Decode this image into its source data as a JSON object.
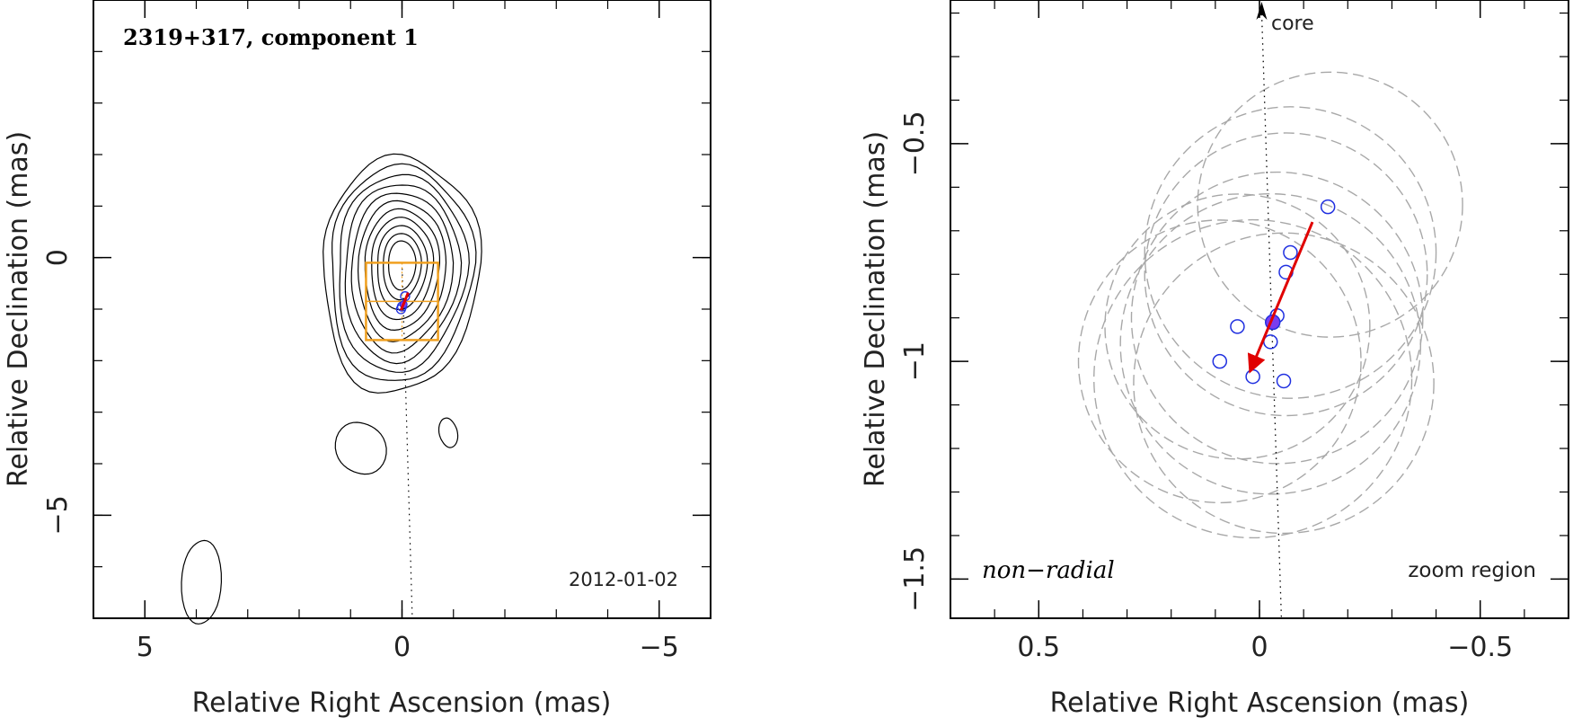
{
  "chart_data": [
    {
      "type": "scatter",
      "panel": "left",
      "title": "2319+317, component 1",
      "epoch": "2012-01-02",
      "xlabel": "Relative Right Ascension (mas)",
      "ylabel": "Relative Declination (mas)",
      "xlim": [
        6,
        -6
      ],
      "ylim": [
        -7,
        5
      ],
      "x_ticks": [
        5,
        0,
        -5
      ],
      "x_tick_labels": [
        "5",
        "0",
        "−5"
      ],
      "y_ticks": [
        0,
        -5
      ],
      "y_tick_labels": [
        "0",
        "−5"
      ],
      "contour_levels": 11,
      "contour_peak": {
        "x": 0.0,
        "y": -0.1
      },
      "extra_contour_islands": [
        {
          "x": -0.9,
          "y": -3.4
        },
        {
          "x": 0.8,
          "y": -3.7
        },
        {
          "x": 3.9,
          "y": -6.3
        }
      ],
      "zoom_box": {
        "x_range": [
          0.7,
          -0.7
        ],
        "y_range": [
          -0.1,
          -1.6
        ]
      },
      "core_direction_line": {
        "from": {
          "x": 0.0,
          "y": -0.1
        },
        "to": {
          "x": -0.2,
          "y": -7.0
        }
      },
      "component_points": [
        {
          "x": -0.06,
          "y": -0.75
        },
        {
          "x": 0.0,
          "y": -0.95
        },
        {
          "x": 0.02,
          "y": -1.0
        }
      ],
      "mean_position": {
        "x": -0.03,
        "y": -0.91
      },
      "motion_vector": {
        "from": {
          "x": -0.12,
          "y": -0.68
        },
        "to": {
          "x": 0.02,
          "y": -1.02
        }
      }
    },
    {
      "type": "scatter",
      "panel": "right",
      "xlabel": "Relative Right Ascension (mas)",
      "ylabel": "Relative Declination (mas)",
      "xlim": [
        0.7,
        -0.7
      ],
      "ylim": [
        -1.59,
        -0.17
      ],
      "x_ticks": [
        0.5,
        0,
        -0.5
      ],
      "x_tick_labels": [
        "0.5",
        "0",
        "−0.5"
      ],
      "y_ticks": [
        -0.5,
        -1,
        -1.5
      ],
      "y_tick_labels": [
        "−0.5",
        "−1",
        "−1.5"
      ],
      "annotations": {
        "core": "core",
        "motion": "non−radial",
        "region": "zoom region"
      },
      "core_direction_line": {
        "from": {
          "x": -0.05,
          "y": -1.6
        },
        "to": {
          "x": -0.005,
          "y": -0.17
        }
      },
      "component_points": [
        {
          "x": -0.155,
          "y": -0.645
        },
        {
          "x": -0.07,
          "y": -0.75
        },
        {
          "x": -0.06,
          "y": -0.795
        },
        {
          "x": -0.04,
          "y": -0.895
        },
        {
          "x": 0.05,
          "y": -0.92
        },
        {
          "x": -0.025,
          "y": -0.955
        },
        {
          "x": 0.09,
          "y": -1.0
        },
        {
          "x": 0.015,
          "y": -1.035
        },
        {
          "x": -0.055,
          "y": -1.045
        }
      ],
      "mean_position": {
        "x": -0.03,
        "y": -0.91
      },
      "motion_vector": {
        "from": {
          "x": -0.12,
          "y": -0.68
        },
        "to": {
          "x": 0.02,
          "y": -1.02
        }
      },
      "uncertainty_circles": [
        {
          "x": -0.16,
          "y": -0.64,
          "r": 0.3
        },
        {
          "x": -0.07,
          "y": -0.75,
          "r": 0.33
        },
        {
          "x": -0.06,
          "y": -0.8,
          "r": 0.32
        },
        {
          "x": -0.04,
          "y": -0.9,
          "r": 0.33
        },
        {
          "x": 0.05,
          "y": -0.92,
          "r": 0.3
        },
        {
          "x": -0.025,
          "y": -0.96,
          "r": 0.34
        },
        {
          "x": 0.09,
          "y": -1.0,
          "r": 0.32
        },
        {
          "x": 0.015,
          "y": -1.04,
          "r": 0.36
        },
        {
          "x": -0.055,
          "y": -1.05,
          "r": 0.34
        }
      ]
    }
  ]
}
